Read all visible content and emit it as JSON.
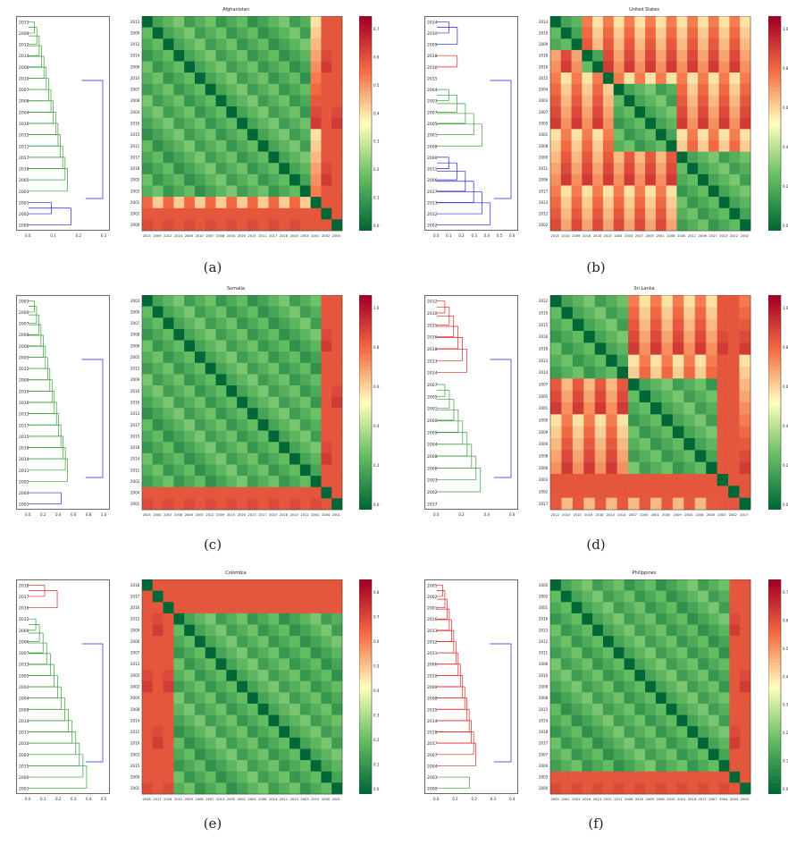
{
  "captions": [
    "(a)",
    "(b)",
    "(c)",
    "(d)",
    "(e)",
    "(f)"
  ],
  "panels": [
    {
      "title": "Afghanistan",
      "order": [
        "2013",
        "2009",
        "2012",
        "2014",
        "2006",
        "2010",
        "2007",
        "2008",
        "2004",
        "2016",
        "2015",
        "2011",
        "2017",
        "2018",
        "2005",
        "2003",
        "2001",
        "2002",
        "2000"
      ],
      "cbar_ticks": [
        "0.0",
        "0.1",
        "0.2",
        "0.3",
        "0.4",
        "0.5",
        "0.6",
        "0.7"
      ],
      "dendro_ticks": [
        "0.0",
        "0.1",
        "0.2",
        "0.3"
      ],
      "clusters": [
        [
          0,
          15,
          "#3a9a3a"
        ],
        [
          16,
          18,
          "#2222dd"
        ]
      ],
      "hi_rows": [
        17,
        18
      ]
    },
    {
      "title": "United States",
      "order": [
        "2014",
        "2010",
        "2009",
        "2018",
        "2016",
        "2015",
        "2004",
        "2003",
        "2007",
        "2005",
        "2001",
        "2008",
        "2000",
        "2011",
        "2006",
        "2017",
        "2013",
        "2012",
        "2002"
      ],
      "cbar_ticks": [
        "0.0",
        "0.2",
        "0.4",
        "0.6",
        "0.8",
        "1.0"
      ],
      "dendro_ticks": [
        "0.0",
        "0.1",
        "0.2",
        "0.3",
        "0.4",
        "0.5",
        "0.6"
      ],
      "clusters": [
        [
          0,
          2,
          "#2222dd"
        ],
        [
          3,
          4,
          "#dd2222"
        ],
        [
          5,
          5,
          "#2222dd"
        ],
        [
          6,
          11,
          "#3a9a3a"
        ],
        [
          12,
          18,
          "#2222dd"
        ]
      ],
      "hi_rows": []
    },
    {
      "title": "Somalia",
      "order": [
        "2003",
        "2000",
        "2007",
        "2008",
        "2006",
        "2005",
        "2012",
        "2009",
        "2010",
        "2016",
        "2013",
        "2017",
        "2015",
        "2018",
        "2014",
        "2011",
        "2002",
        "2004",
        "2001"
      ],
      "cbar_ticks": [
        "0.0",
        "0.2",
        "0.4",
        "0.6",
        "0.8",
        "1.0"
      ],
      "dendro_ticks": [
        "0.0",
        "0.2",
        "0.4",
        "0.6",
        "0.8",
        "1.0"
      ],
      "clusters": [
        [
          0,
          16,
          "#3a9a3a"
        ],
        [
          17,
          18,
          "#2222dd"
        ]
      ],
      "hi_rows": [
        17,
        18
      ]
    },
    {
      "title": "Sri Lanka",
      "order": [
        "2012",
        "2010",
        "2015",
        "2016",
        "2018",
        "2013",
        "2014",
        "2007",
        "2005",
        "2001",
        "2000",
        "2009",
        "2004",
        "2008",
        "2006",
        "2003",
        "2002",
        "2017"
      ],
      "cbar_ticks": [
        "0.0",
        "0.2",
        "0.4",
        "0.6",
        "0.8",
        "1.0"
      ],
      "dendro_ticks": [
        "0.0",
        "0.2",
        "0.4",
        "0.6"
      ],
      "clusters": [
        [
          0,
          6,
          "#dd2222"
        ],
        [
          7,
          16,
          "#3a9a3a"
        ],
        [
          17,
          17,
          "#2222dd"
        ]
      ],
      "hi_rows": [
        15,
        16
      ]
    },
    {
      "title": "Colombia",
      "order": [
        "2018",
        "2017",
        "2016",
        "2012",
        "2009",
        "2006",
        "2007",
        "2013",
        "2005",
        "2002",
        "2004",
        "2008",
        "2014",
        "2011",
        "2010",
        "2003",
        "2015",
        "2000",
        "2001"
      ],
      "cbar_ticks": [
        "0.0",
        "0.1",
        "0.2",
        "0.3",
        "0.4",
        "0.5",
        "0.6",
        "0.7",
        "0.8"
      ],
      "dendro_ticks": [
        "0.0",
        "0.1",
        "0.2",
        "0.3",
        "0.4",
        "0.5"
      ],
      "clusters": [
        [
          0,
          2,
          "#dd2222"
        ],
        [
          3,
          18,
          "#3a9a3a"
        ]
      ],
      "hi_rows": [
        0,
        1,
        2
      ]
    },
    {
      "title": "Philippines",
      "order": [
        "2005",
        "2002",
        "2001",
        "2016",
        "2013",
        "2012",
        "2011",
        "2006",
        "2010",
        "2009",
        "2008",
        "2015",
        "2014",
        "2018",
        "2017",
        "2007",
        "2004",
        "2003",
        "2000"
      ],
      "cbar_ticks": [
        "0.0",
        "0.1",
        "0.2",
        "0.3",
        "0.4",
        "0.5",
        "0.6",
        "0.7"
      ],
      "dendro_ticks": [
        "0.0",
        "0.1",
        "0.2",
        "0.3",
        "0.4"
      ],
      "clusters": [
        [
          0,
          16,
          "#dd2222"
        ],
        [
          17,
          18,
          "#3a9a3a"
        ]
      ],
      "hi_rows": [
        17,
        18
      ]
    }
  ],
  "chart_data": [
    {
      "type": "heatmap",
      "title": "Afghanistan",
      "categories": [
        "2013",
        "2009",
        "2012",
        "2014",
        "2006",
        "2010",
        "2007",
        "2008",
        "2004",
        "2016",
        "2015",
        "2011",
        "2017",
        "2018",
        "2005",
        "2003",
        "2001",
        "2002",
        "2000"
      ],
      "colorbar_range": [
        0,
        0.75
      ]
    },
    {
      "type": "heatmap",
      "title": "United States",
      "categories": [
        "2014",
        "2010",
        "2009",
        "2018",
        "2016",
        "2015",
        "2004",
        "2003",
        "2007",
        "2005",
        "2001",
        "2008",
        "2000",
        "2011",
        "2006",
        "2017",
        "2013",
        "2012",
        "2002"
      ],
      "colorbar_range": [
        0,
        1.0
      ]
    },
    {
      "type": "heatmap",
      "title": "Somalia",
      "categories": [
        "2003",
        "2000",
        "2007",
        "2008",
        "2006",
        "2005",
        "2012",
        "2009",
        "2010",
        "2016",
        "2013",
        "2017",
        "2015",
        "2018",
        "2014",
        "2011",
        "2002",
        "2004",
        "2001"
      ],
      "colorbar_range": [
        0,
        1.0
      ]
    },
    {
      "type": "heatmap",
      "title": "Sri Lanka",
      "categories": [
        "2012",
        "2010",
        "2015",
        "2016",
        "2018",
        "2013",
        "2014",
        "2007",
        "2005",
        "2001",
        "2000",
        "2009",
        "2004",
        "2008",
        "2006",
        "2003",
        "2002",
        "2017"
      ],
      "colorbar_range": [
        0,
        1.0
      ]
    },
    {
      "type": "heatmap",
      "title": "Colombia",
      "categories": [
        "2018",
        "2017",
        "2016",
        "2012",
        "2009",
        "2006",
        "2007",
        "2013",
        "2005",
        "2002",
        "2004",
        "2008",
        "2014",
        "2011",
        "2010",
        "2003",
        "2015",
        "2000",
        "2001"
      ],
      "colorbar_range": [
        0,
        0.85
      ]
    },
    {
      "type": "heatmap",
      "title": "Philippines",
      "categories": [
        "2005",
        "2002",
        "2001",
        "2016",
        "2013",
        "2012",
        "2011",
        "2006",
        "2010",
        "2009",
        "2008",
        "2015",
        "2014",
        "2018",
        "2017",
        "2007",
        "2004",
        "2003",
        "2000"
      ],
      "colorbar_range": [
        0,
        0.72
      ]
    }
  ]
}
